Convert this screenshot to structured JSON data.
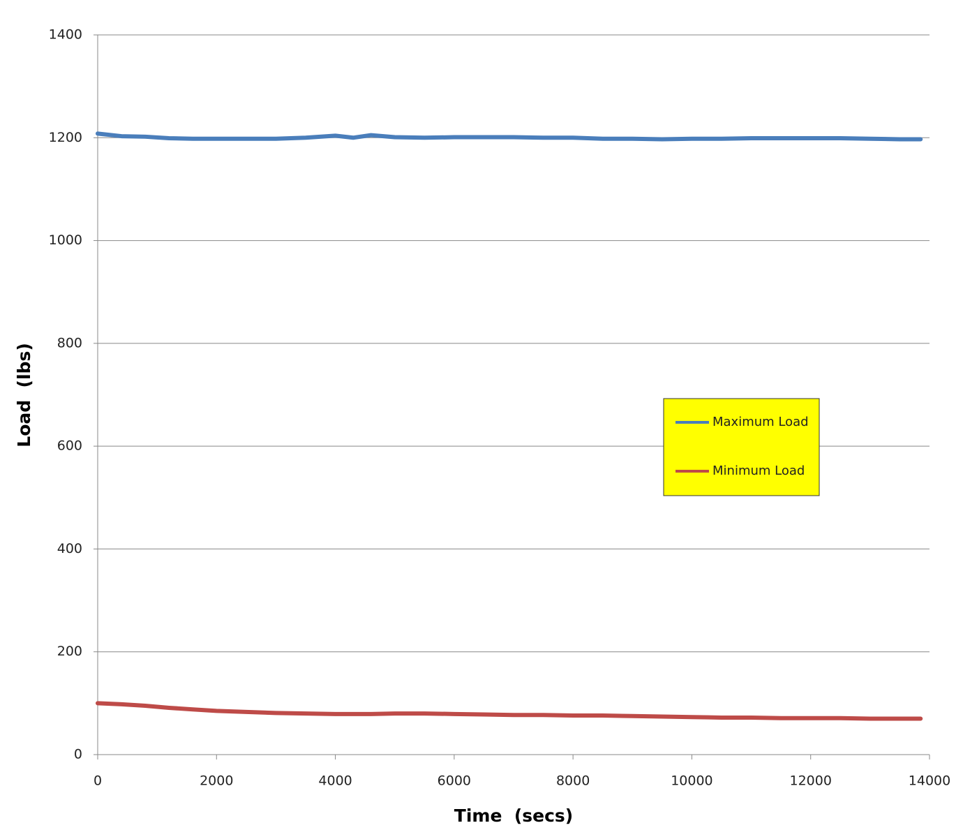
{
  "chart_data": {
    "type": "line",
    "xlabel": "Time  (secs)",
    "ylabel": "Load  (lbs)",
    "x": [
      0,
      400,
      800,
      1200,
      1600,
      2000,
      2500,
      3000,
      3500,
      4000,
      4300,
      4600,
      5000,
      5500,
      6000,
      6500,
      7000,
      7500,
      8000,
      8500,
      9000,
      9500,
      10000,
      10500,
      11000,
      11500,
      12000,
      12500,
      13000,
      13500,
      13850
    ],
    "series": [
      {
        "name": "Maximum Load",
        "color": "#4a7ebb",
        "values": [
          1208,
          1203,
          1202,
          1199,
          1198,
          1198,
          1198,
          1198,
          1200,
          1204,
          1200,
          1205,
          1201,
          1200,
          1201,
          1201,
          1201,
          1200,
          1200,
          1198,
          1198,
          1197,
          1198,
          1198,
          1199,
          1199,
          1199,
          1199,
          1198,
          1197,
          1197
        ]
      },
      {
        "name": "Minimum Load",
        "color": "#be4b48",
        "values": [
          100,
          98,
          95,
          91,
          88,
          85,
          83,
          81,
          80,
          79,
          79,
          79,
          80,
          80,
          79,
          78,
          77,
          77,
          76,
          76,
          75,
          74,
          73,
          72,
          72,
          71,
          71,
          71,
          70,
          70,
          70
        ]
      }
    ],
    "xlim": [
      0,
      14000
    ],
    "xticks": [
      0,
      2000,
      4000,
      6000,
      8000,
      10000,
      12000,
      14000
    ],
    "ylim": [
      0,
      1400
    ],
    "yticks": [
      0,
      200,
      400,
      600,
      800,
      1000,
      1200,
      1400
    ],
    "grid": true,
    "legend": "right",
    "legend_background": "#ffff00"
  }
}
